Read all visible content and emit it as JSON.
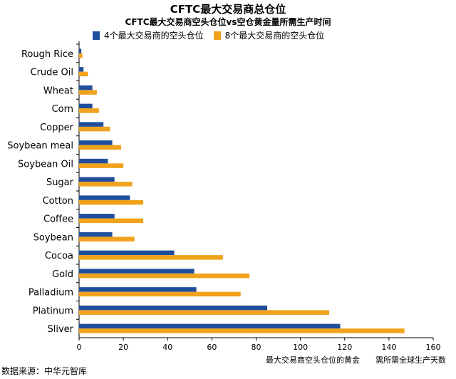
{
  "chart_data": {
    "type": "bar",
    "orientation": "horizontal",
    "title": "CFTC最大交易商总仓位",
    "subtitle": "CFTC最大交易商空头仓位vs空仓黄金量所需生产时间",
    "xlabel": "最大交易商空头仓位的黄金　　需所需全球生产天数",
    "xlim": [
      0,
      160
    ],
    "xticks": [
      0,
      20,
      40,
      60,
      80,
      100,
      120,
      140,
      160
    ],
    "legend_position": "top-left",
    "grid": false,
    "categories": [
      "Rough Rice",
      "Crude Oil",
      "Wheat",
      "Corn",
      "Copper",
      "Soybean meal",
      "Soybean Oil",
      "Sugar",
      "Cotton",
      "Coffee",
      "Soybean",
      "Cocoa",
      "Gold",
      "Palladium",
      "Platinum",
      "Sliver"
    ],
    "series": [
      {
        "name": "4个最大交易商的空头仓位",
        "color": "#1f4e9c",
        "values": [
          1,
          2,
          6,
          6,
          11,
          15,
          13,
          16,
          23,
          16,
          15,
          43,
          52,
          53,
          85,
          118
        ]
      },
      {
        "name": "8个最大交易商的空头仓位",
        "color": "#f0a21d",
        "values": [
          1.5,
          4,
          8,
          9,
          14,
          19,
          20,
          24,
          29,
          29,
          25,
          65,
          77,
          73,
          113,
          147
        ]
      }
    ]
  },
  "source": "数据来源：中华元智库"
}
